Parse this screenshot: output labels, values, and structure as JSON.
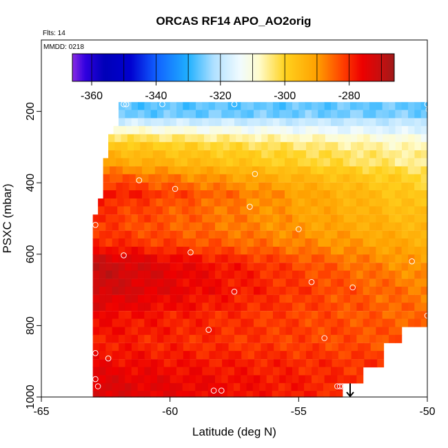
{
  "chart_data": {
    "type": "heatmap",
    "title": "ORCAS RF14 APO_AO2orig",
    "flights_label": "Flts: 14",
    "date_label": "MMDD: 0218",
    "xlabel": "Latitude (deg N)",
    "ylabel": "PSXC (mbar)",
    "xlim": [
      -65,
      -50
    ],
    "ylim": [
      1000,
      0
    ],
    "x_ticks": [
      -65,
      -60,
      -55,
      -50
    ],
    "y_ticks": [
      200,
      400,
      600,
      800,
      1000
    ],
    "grid": false,
    "colorbar": {
      "orientation": "horizontal",
      "placement": "top",
      "range": [
        -366,
        -266
      ],
      "ticks": [
        -360,
        -340,
        -320,
        -300,
        -280
      ],
      "stops": [
        {
          "value": -366,
          "color": "#8a2be2"
        },
        {
          "value": -362,
          "color": "#3000e0"
        },
        {
          "value": -356,
          "color": "#0000b8"
        },
        {
          "value": -348,
          "color": "#0000d0"
        },
        {
          "value": -340,
          "color": "#1060ff"
        },
        {
          "value": -330,
          "color": "#20b0ff"
        },
        {
          "value": -322,
          "color": "#b0e0ff"
        },
        {
          "value": -314,
          "color": "#f0fbff"
        },
        {
          "value": -308,
          "color": "#fffccc"
        },
        {
          "value": -300,
          "color": "#ffd21e"
        },
        {
          "value": -290,
          "color": "#ffa000"
        },
        {
          "value": -282,
          "color": "#ff4000"
        },
        {
          "value": -276,
          "color": "#ee0000"
        },
        {
          "value": -270,
          "color": "#c41010"
        },
        {
          "value": -266,
          "color": "#a01818"
        }
      ]
    },
    "cell_height_mbar": 22,
    "bands": [
      {
        "p": 185,
        "x0": -62,
        "x1": -50,
        "v0": -327,
        "v1": -326
      },
      {
        "p": 207,
        "x0": -62,
        "x1": -50,
        "v0": -326,
        "v1": -325
      },
      {
        "p": 230,
        "x0": -62,
        "x1": -50,
        "v0": -318,
        "v1": -320
      },
      {
        "p": 252,
        "x0": -62.2,
        "x1": -50,
        "v0": -309,
        "v1": -317
      },
      {
        "p": 275,
        "x0": -62.4,
        "x1": -50,
        "v0": -302,
        "v1": -311
      },
      {
        "p": 297,
        "x0": -62.4,
        "x1": -50,
        "v0": -297,
        "v1": -308
      },
      {
        "p": 320,
        "x0": -62.4,
        "x1": -50,
        "v0": -294,
        "v1": -306
      },
      {
        "p": 342,
        "x0": -62.6,
        "x1": -50,
        "v0": -291,
        "v1": -306
      },
      {
        "p": 365,
        "x0": -62.6,
        "x1": -50,
        "v0": -287,
        "v1": -303
      },
      {
        "p": 387,
        "x0": -62.6,
        "x1": -50,
        "v0": -283,
        "v1": -301
      },
      {
        "p": 410,
        "x0": -62.6,
        "x1": -50,
        "v0": -280,
        "v1": -300
      },
      {
        "p": 432,
        "x0": -62.6,
        "x1": -50,
        "v0": -277,
        "v1": -299
      },
      {
        "p": 455,
        "x0": -62.8,
        "x1": -50,
        "v0": -279,
        "v1": -298
      },
      {
        "p": 477,
        "x0": -62.8,
        "x1": -50,
        "v0": -280,
        "v1": -297
      },
      {
        "p": 500,
        "x0": -63,
        "x1": -50,
        "v0": -280,
        "v1": -296
      },
      {
        "p": 522,
        "x0": -63,
        "x1": -50,
        "v0": -281,
        "v1": -295
      },
      {
        "p": 545,
        "x0": -63,
        "x1": -50,
        "v0": -280,
        "v1": -294
      },
      {
        "p": 567,
        "x0": -63,
        "x1": -50,
        "v0": -279,
        "v1": -293
      },
      {
        "p": 590,
        "x0": -63,
        "x1": -50,
        "v0": -276,
        "v1": -292
      },
      {
        "p": 612,
        "x0": -63,
        "x1": -50,
        "v0": -272,
        "v1": -291
      },
      {
        "p": 635,
        "x0": -63,
        "x1": -50,
        "v0": -270,
        "v1": -290
      },
      {
        "p": 657,
        "x0": -63,
        "x1": -50,
        "v0": -270,
        "v1": -289
      },
      {
        "p": 680,
        "x0": -63,
        "x1": -50,
        "v0": -271,
        "v1": -288
      },
      {
        "p": 702,
        "x0": -63,
        "x1": -50,
        "v0": -271,
        "v1": -287
      },
      {
        "p": 725,
        "x0": -63,
        "x1": -50,
        "v0": -273,
        "v1": -287
      },
      {
        "p": 747,
        "x0": -63,
        "x1": -50,
        "v0": -274,
        "v1": -286
      },
      {
        "p": 770,
        "x0": -63,
        "x1": -50,
        "v0": -276,
        "v1": -286
      },
      {
        "p": 792,
        "x0": -63,
        "x1": -50,
        "v0": -277,
        "v1": -285
      },
      {
        "p": 815,
        "x0": -63,
        "x1": -51,
        "v0": -277,
        "v1": -284
      },
      {
        "p": 837,
        "x0": -63,
        "x1": -51,
        "v0": -278,
        "v1": -284
      },
      {
        "p": 860,
        "x0": -63,
        "x1": -51.7,
        "v0": -278,
        "v1": -283
      },
      {
        "p": 882,
        "x0": -63,
        "x1": -51.7,
        "v0": -277,
        "v1": -282
      },
      {
        "p": 905,
        "x0": -63,
        "x1": -51.7,
        "v0": -276,
        "v1": -281
      },
      {
        "p": 927,
        "x0": -63,
        "x1": -52.5,
        "v0": -275,
        "v1": -281
      },
      {
        "p": 950,
        "x0": -63,
        "x1": -52.5,
        "v0": -274,
        "v1": -280
      },
      {
        "p": 972,
        "x0": -63,
        "x1": -53.3,
        "v0": -273,
        "v1": -280
      },
      {
        "p": 994,
        "x0": -63,
        "x1": -53.3,
        "v0": -273,
        "v1": -280
      }
    ],
    "observations": [
      {
        "lat": -61.8,
        "p": 180
      },
      {
        "lat": -61.7,
        "p": 180
      },
      {
        "lat": -60.3,
        "p": 180
      },
      {
        "lat": -57.5,
        "p": 180
      },
      {
        "lat": -50.0,
        "p": 180
      },
      {
        "lat": -49.95,
        "p": 195
      },
      {
        "lat": -56.7,
        "p": 375
      },
      {
        "lat": -61.2,
        "p": 393
      },
      {
        "lat": -59.8,
        "p": 417
      },
      {
        "lat": -56.9,
        "p": 467
      },
      {
        "lat": -62.9,
        "p": 518
      },
      {
        "lat": -55.0,
        "p": 530
      },
      {
        "lat": -59.2,
        "p": 595
      },
      {
        "lat": -61.8,
        "p": 603
      },
      {
        "lat": -50.6,
        "p": 620
      },
      {
        "lat": -54.5,
        "p": 678
      },
      {
        "lat": -52.9,
        "p": 693
      },
      {
        "lat": -57.5,
        "p": 705
      },
      {
        "lat": -50.0,
        "p": 772
      },
      {
        "lat": -58.5,
        "p": 812
      },
      {
        "lat": -54.0,
        "p": 835
      },
      {
        "lat": -62.9,
        "p": 877
      },
      {
        "lat": -62.4,
        "p": 892
      },
      {
        "lat": -62.9,
        "p": 950
      },
      {
        "lat": -62.8,
        "p": 970
      },
      {
        "lat": -53.5,
        "p": 970
      },
      {
        "lat": -53.4,
        "p": 970
      },
      {
        "lat": -53.3,
        "p": 970
      },
      {
        "lat": -58.3,
        "p": 982
      },
      {
        "lat": -58.0,
        "p": 982
      }
    ],
    "marker": {
      "lat": -53.0,
      "p_from": 962,
      "p_to": 1000,
      "symbol": "arrow-down"
    }
  }
}
